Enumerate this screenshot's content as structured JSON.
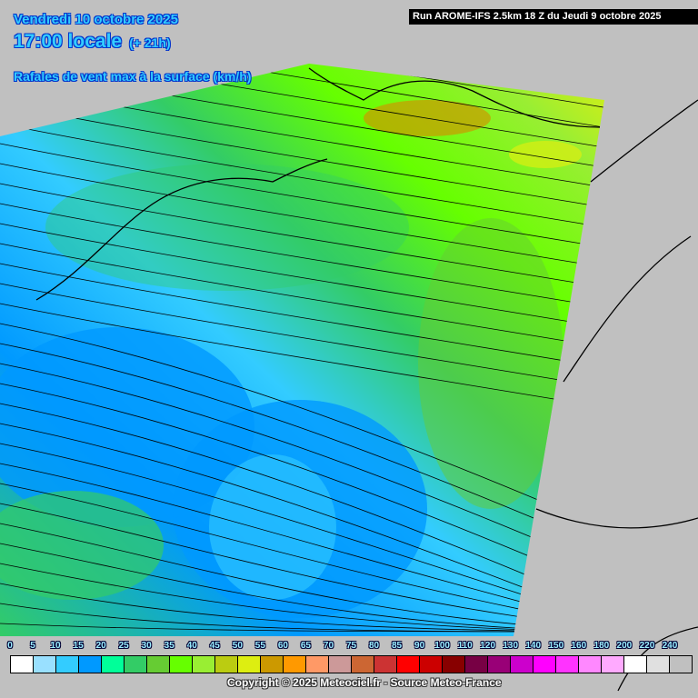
{
  "header": {
    "date": "Vendredi 10 octobre 2025",
    "time": "17:00 locale",
    "lead": "(+ 21h)",
    "parameter": "Rafales de vent max à la surface (km/h)",
    "run": "Run AROME-IFS 2.5km 18 Z du Jeudi 9 octobre 2025"
  },
  "legend": {
    "labels": [
      "0",
      "5",
      "10",
      "15",
      "20",
      "25",
      "30",
      "35",
      "40",
      "45",
      "50",
      "55",
      "60",
      "65",
      "70",
      "75",
      "80",
      "85",
      "90",
      "100",
      "110",
      "120",
      "130",
      "140",
      "150",
      "160",
      "180",
      "200",
      "220",
      "240"
    ],
    "colors": [
      "#ffffff",
      "#99e0ff",
      "#33ccff",
      "#0099ff",
      "#00ff99",
      "#33cc66",
      "#66cc33",
      "#66ff00",
      "#99ee33",
      "#bbcc11",
      "#ddee11",
      "#cc9900",
      "#ff9900",
      "#ff9966",
      "#cc9999",
      "#cc6633",
      "#cc3333",
      "#ff0000",
      "#cc0000",
      "#880000",
      "#770044",
      "#990077",
      "#cc00cc",
      "#ff00ff",
      "#ff33ff",
      "#ff88ff",
      "#ffaaff",
      "#ffffff",
      "#e0e0e0",
      "#c0c0c0"
    ]
  },
  "copyright": "Copyright © 2025 Meteociel.fr - Source Meteo-France",
  "colors": {
    "outside_domain": "#c0c0c0",
    "title": "#33ccff"
  }
}
